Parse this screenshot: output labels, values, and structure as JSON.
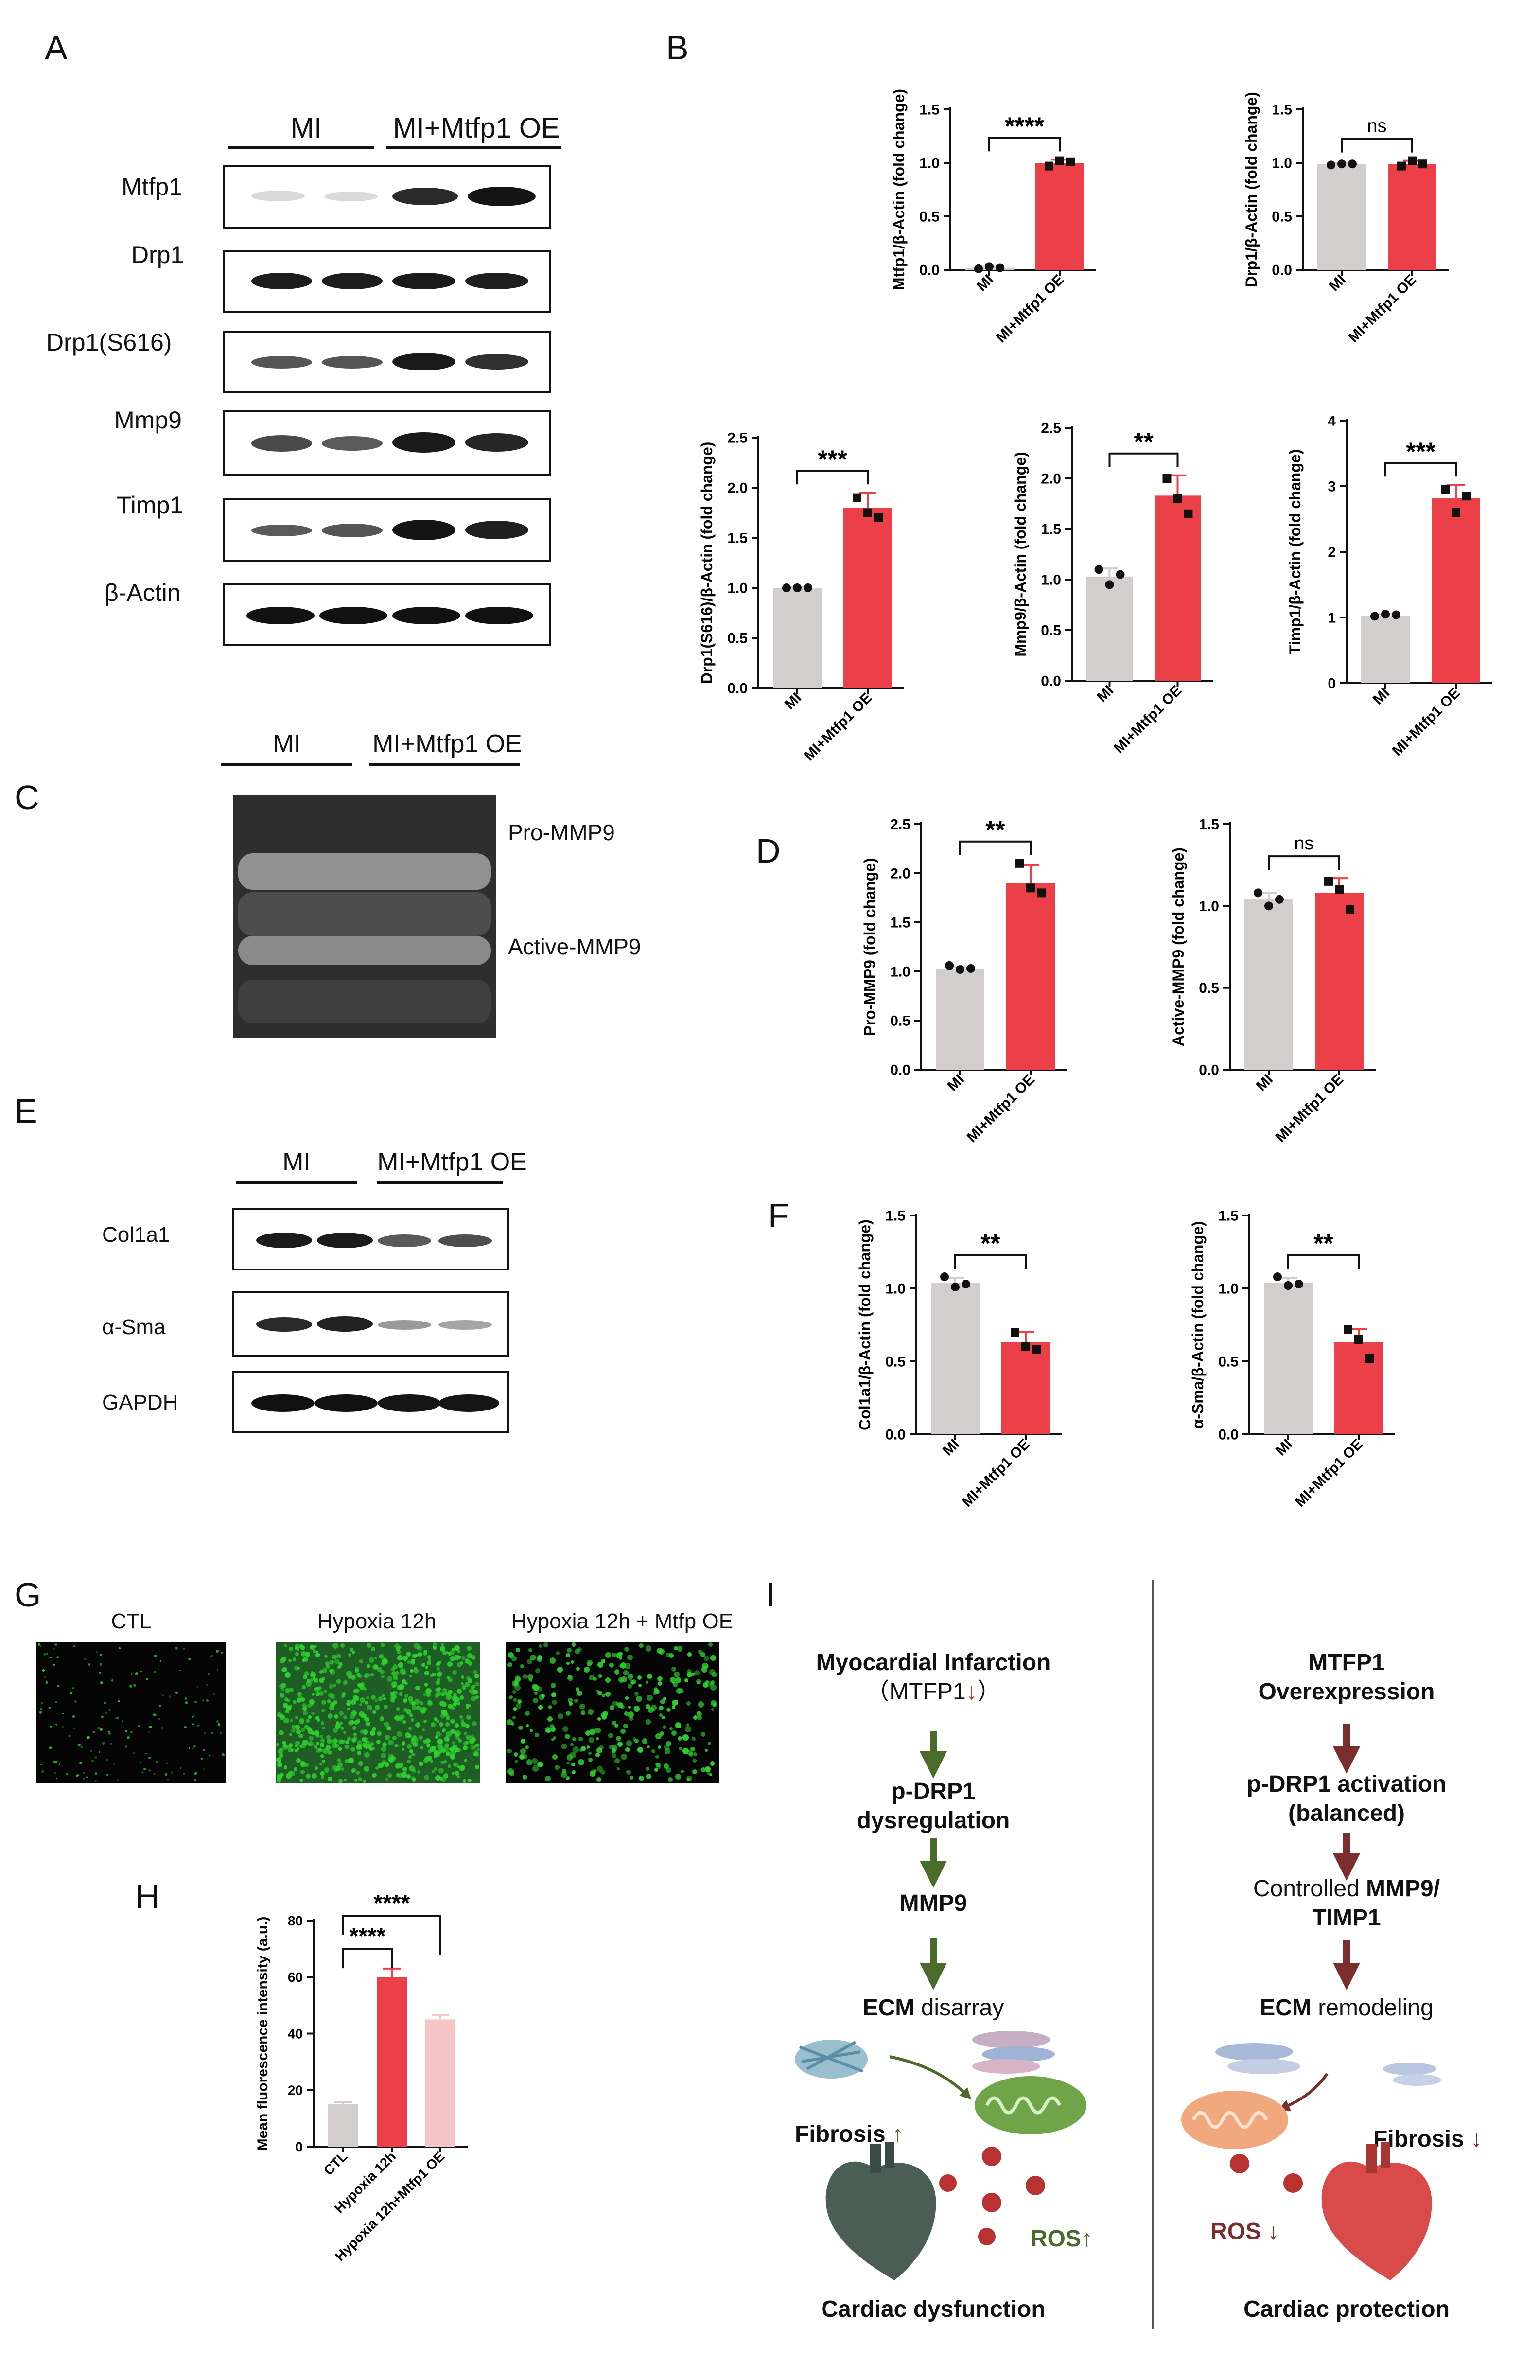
{
  "panel_labels": {
    "A": "A",
    "B": "B",
    "C": "C",
    "D": "D",
    "E": "E",
    "F": "F",
    "G": "G",
    "H": "H",
    "I": "I"
  },
  "panel_a": {
    "groups": [
      "MI",
      "MI+Mtfp1 OE"
    ],
    "proteins": [
      "Mtfp1",
      "Drp1",
      "Drp1(S616)",
      "Mmp9",
      "Timp1",
      "β-Actin"
    ]
  },
  "panel_c": {
    "groups": [
      "MI",
      "MI+Mtfp1 OE"
    ],
    "band_labels": [
      "Pro-MMP9",
      "Active-MMP9"
    ]
  },
  "panel_e": {
    "groups": [
      "MI",
      "MI+Mtfp1 OE"
    ],
    "proteins": [
      "Col1a1",
      "α-Sma",
      "GAPDH"
    ]
  },
  "panel_g": {
    "titles": [
      "CTL",
      "Hypoxia 12h",
      "Hypoxia 12h + Mtfp OE"
    ]
  },
  "colors": {
    "control": "#d3cece",
    "treated": "#ec4048",
    "treated_light": "#f7c5c5",
    "green_arrow": "#4b6b2c",
    "red_arrow": "#7a2e2e"
  },
  "chart_data": [
    {
      "id": "mtfp1",
      "type": "bar",
      "categories": [
        "MI",
        "MI+Mtfp1 OE"
      ],
      "values": [
        0.02,
        1.0
      ],
      "points": [
        [
          0.01,
          0.03,
          0.02
        ],
        [
          0.97,
          1.02,
          1.01
        ]
      ],
      "errors": [
        0.01,
        0.03
      ],
      "ylabel": "Mtfp1/β-Actin (fold change)",
      "ylim": [
        0,
        1.5
      ],
      "ticks": [
        "0.0",
        "0.5",
        "1.0",
        "1.5"
      ],
      "significance": "****"
    },
    {
      "id": "drp1",
      "type": "bar",
      "categories": [
        "MI",
        "MI+Mtfp1 OE"
      ],
      "values": [
        0.99,
        0.99
      ],
      "points": [
        [
          0.98,
          0.99,
          0.99
        ],
        [
          0.97,
          1.02,
          0.99
        ]
      ],
      "errors": [
        0.01,
        0.03
      ],
      "ylabel": "Drp1/β-Actin (fold change)",
      "ylim": [
        0,
        1.5
      ],
      "ticks": [
        "0.0",
        "0.5",
        "1.0",
        "1.5"
      ],
      "significance": "ns"
    },
    {
      "id": "drp1s616",
      "type": "bar",
      "categories": [
        "MI",
        "MI+Mtfp1 OE"
      ],
      "values": [
        1.0,
        1.8
      ],
      "points": [
        [
          1.0,
          1.0,
          1.0
        ],
        [
          1.9,
          1.75,
          1.7
        ]
      ],
      "errors": [
        0.01,
        0.15
      ],
      "ylabel": "Drp1(S616)/β-Actin (fold change)",
      "ylim": [
        0,
        2.5
      ],
      "ticks": [
        "0.0",
        "0.5",
        "1.0",
        "1.5",
        "2.0",
        "2.5"
      ],
      "significance": "***"
    },
    {
      "id": "mmp9",
      "type": "bar",
      "categories": [
        "MI",
        "MI+Mtfp1 OE"
      ],
      "values": [
        1.03,
        1.83
      ],
      "points": [
        [
          1.1,
          0.95,
          1.05
        ],
        [
          2.0,
          1.8,
          1.65
        ]
      ],
      "errors": [
        0.08,
        0.2
      ],
      "ylabel": "Mmp9/β-Actin (fold change)",
      "ylim": [
        0,
        2.5
      ],
      "ticks": [
        "0.0",
        "0.5",
        "1.0",
        "1.5",
        "2.0",
        "2.5"
      ],
      "significance": "**"
    },
    {
      "id": "timp1",
      "type": "bar",
      "categories": [
        "MI",
        "MI+Mtfp1 OE"
      ],
      "values": [
        1.03,
        2.82
      ],
      "points": [
        [
          1.02,
          1.05,
          1.04
        ],
        [
          2.95,
          2.6,
          2.85
        ]
      ],
      "errors": [
        0.02,
        0.2
      ],
      "ylabel": "Timp1/β-Actin (fold change)",
      "ylim": [
        0,
        4
      ],
      "ticks": [
        "0",
        "1",
        "2",
        "3",
        "4"
      ],
      "significance": "***"
    },
    {
      "id": "promm9",
      "type": "bar",
      "categories": [
        "MI",
        "MI+Mtfp1 OE"
      ],
      "values": [
        1.03,
        1.9
      ],
      "points": [
        [
          1.06,
          1.02,
          1.03
        ],
        [
          2.1,
          1.85,
          1.8
        ]
      ],
      "errors": [
        0.02,
        0.18
      ],
      "ylabel": "Pro-MMP9 (fold change)",
      "ylim": [
        0,
        2.5
      ],
      "ticks": [
        "0.0",
        "0.5",
        "1.0",
        "1.5",
        "2.0",
        "2.5"
      ],
      "significance": "**"
    },
    {
      "id": "activemmp9",
      "type": "bar",
      "categories": [
        "MI",
        "MI+Mtfp1 OE"
      ],
      "values": [
        1.04,
        1.08
      ],
      "points": [
        [
          1.08,
          1.0,
          1.04
        ],
        [
          1.15,
          1.1,
          0.98
        ]
      ],
      "errors": [
        0.04,
        0.09
      ],
      "ylabel": "Active-MMP9 (fold change)",
      "ylim": [
        0,
        1.5
      ],
      "ticks": [
        "0.0",
        "0.5",
        "1.0",
        "1.5"
      ],
      "significance": "ns"
    },
    {
      "id": "col1a1",
      "type": "bar",
      "categories": [
        "MI",
        "MI+Mtfp1 OE"
      ],
      "values": [
        1.04,
        0.63
      ],
      "points": [
        [
          1.08,
          1.01,
          1.03
        ],
        [
          0.7,
          0.6,
          0.58
        ]
      ],
      "errors": [
        0.03,
        0.07
      ],
      "ylabel": "Col1a1/β-Actin (fold change)",
      "ylim": [
        0,
        1.5
      ],
      "ticks": [
        "0.0",
        "0.5",
        "1.0",
        "1.5"
      ],
      "significance": "**"
    },
    {
      "id": "asma",
      "type": "bar",
      "categories": [
        "MI",
        "MI+Mtfp1 OE"
      ],
      "values": [
        1.04,
        0.63
      ],
      "points": [
        [
          1.08,
          1.02,
          1.03
        ],
        [
          0.72,
          0.65,
          0.52
        ]
      ],
      "errors": [
        0.03,
        0.09
      ],
      "ylabel": "α-Sma/β-Actin (fold change)",
      "ylim": [
        0,
        1.5
      ],
      "ticks": [
        "0.0",
        "0.5",
        "1.0",
        "1.5"
      ],
      "significance": "**"
    },
    {
      "id": "fluor",
      "type": "bar",
      "categories": [
        "CTL",
        "Hypoxia 12h",
        "Hypoxia 12h+Mtfp1 OE"
      ],
      "values": [
        15,
        60,
        45
      ],
      "errors": [
        0.8,
        3,
        1.5
      ],
      "ylabel": "Mean fluorescence intensity (a.u.)",
      "ylim": [
        0,
        80
      ],
      "ticks": [
        "0",
        "20",
        "40",
        "60",
        "80"
      ],
      "significance_pairs": [
        [
          "CTL",
          "Hypoxia 12h",
          "****"
        ],
        [
          "CTL",
          "Hypoxia 12h+Mtfp1 OE",
          "****"
        ]
      ]
    }
  ],
  "schema": {
    "left": {
      "title1": "Myocardial Infarction",
      "title2": "（MTFP1",
      "title2_arrow": "↓",
      "title2_close": "）",
      "step1a": "p-DRP1",
      "step1b": "dysregulation",
      "step2": "MMP9",
      "step3_bold": "ECM",
      "step3_rest": " disarray",
      "fibrosis": "Fibrosis",
      "fibrosis_arrow": "↑",
      "ros": "ROS",
      "ros_arrow": "↑",
      "outcome": "Cardiac dysfunction"
    },
    "right": {
      "title1": "MTFP1",
      "title2": "Overexpression",
      "step1a": "p-DRP1 activation",
      "step1b": "(balanced)",
      "step2_normal": "Controlled ",
      "step2_bold": "MMP9/",
      "step2b": "TIMP1",
      "step3_bold": "ECM",
      "step3_rest": " remodeling",
      "fibrosis": "Fibrosis",
      "fibrosis_arrow": "↓",
      "ros": "ROS",
      "ros_arrow": "↓",
      "outcome": "Cardiac protection"
    }
  }
}
